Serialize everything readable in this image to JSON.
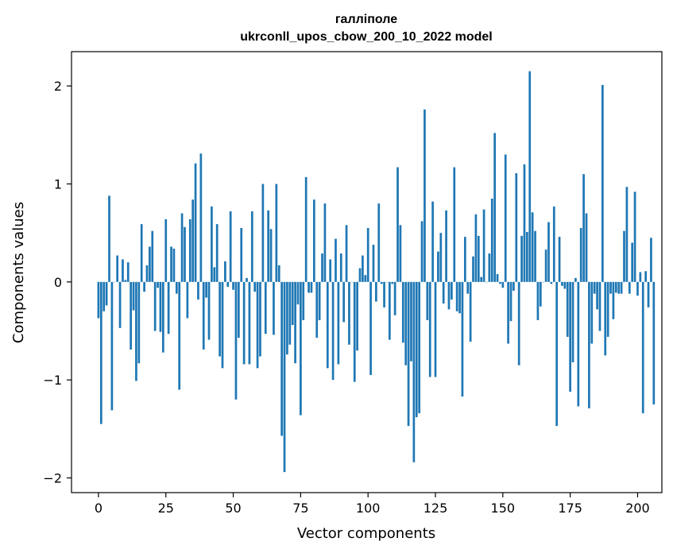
{
  "chart_data": {
    "type": "bar",
    "title": "галліполе",
    "subtitle": "ukrconll_upos_cbow_200_10_2022 model",
    "xlabel": "Vector components",
    "ylabel": "Components values",
    "xlim": [
      -10,
      209
    ],
    "ylim": [
      -2.15,
      2.35
    ],
    "xticks": [
      0,
      25,
      50,
      75,
      100,
      125,
      150,
      175,
      200
    ],
    "yticks": [
      -2,
      -1,
      0,
      1,
      2
    ],
    "ytick_labels": [
      "−2",
      "−1",
      "0",
      "1",
      "2"
    ],
    "bar_color": "#1f77b4",
    "grid": false,
    "values": [
      -0.37,
      -1.45,
      -0.3,
      -0.24,
      0.88,
      -1.31,
      0.0,
      0.27,
      -0.47,
      0.23,
      0.02,
      0.2,
      -0.69,
      -0.29,
      -1.01,
      -0.83,
      0.59,
      -0.1,
      0.17,
      0.36,
      0.52,
      -0.5,
      -0.06,
      -0.51,
      -0.72,
      0.64,
      -0.53,
      0.36,
      0.34,
      -0.12,
      -1.1,
      0.7,
      0.56,
      -0.37,
      0.64,
      0.84,
      1.21,
      -0.18,
      1.31,
      -0.69,
      -0.16,
      -0.59,
      0.77,
      0.15,
      0.59,
      -0.76,
      -0.88,
      0.21,
      -0.05,
      0.72,
      -0.08,
      -1.2,
      -0.57,
      0.55,
      -0.84,
      0.04,
      -0.84,
      0.72,
      -0.1,
      -0.88,
      -0.76,
      1.0,
      -0.53,
      0.73,
      0.54,
      -0.54,
      1.0,
      0.17,
      -1.57,
      -1.94,
      -0.74,
      -0.64,
      -0.44,
      -0.83,
      -0.23,
      -1.36,
      -0.39,
      1.07,
      -0.11,
      -0.11,
      0.84,
      -0.57,
      -0.39,
      0.29,
      0.8,
      -0.88,
      0.23,
      -1.0,
      0.44,
      -0.84,
      0.29,
      -0.41,
      0.58,
      -0.64,
      0.0,
      -1.02,
      -0.7,
      0.14,
      0.27,
      0.07,
      0.55,
      -0.95,
      0.38,
      -0.2,
      0.8,
      -0.02,
      -0.26,
      0.0,
      -0.59,
      -0.02,
      -0.34,
      1.17,
      0.58,
      -0.62,
      -0.85,
      -1.47,
      -0.81,
      -1.84,
      -1.38,
      -1.34,
      0.62,
      1.76,
      -0.39,
      -0.97,
      0.82,
      -0.97,
      0.31,
      0.5,
      -0.22,
      0.73,
      -0.28,
      -0.18,
      1.17,
      -0.3,
      -0.32,
      -1.17,
      0.46,
      -0.12,
      -0.61,
      0.26,
      0.69,
      0.47,
      0.05,
      0.74,
      0.0,
      0.29,
      0.85,
      1.52,
      0.08,
      -0.02,
      -0.06,
      1.3,
      -0.63,
      -0.4,
      -0.09,
      1.11,
      -0.85,
      0.47,
      1.2,
      0.51,
      2.15,
      0.71,
      0.52,
      -0.39,
      -0.25,
      0.0,
      0.33,
      0.61,
      -0.02,
      0.77,
      -1.47,
      0.46,
      -0.04,
      -0.07,
      -0.56,
      -1.12,
      -0.82,
      0.04,
      -1.27,
      0.55,
      1.1,
      0.7,
      -1.29,
      -0.63,
      -0.12,
      -0.28,
      -0.5,
      2.01,
      -0.75,
      -0.56,
      -0.12,
      -0.38,
      -0.11,
      -0.12,
      -0.12,
      0.52,
      0.97,
      -0.12,
      0.4,
      0.92,
      -0.14,
      0.1,
      -1.34,
      0.11,
      -0.26,
      0.45,
      -1.25
    ]
  }
}
